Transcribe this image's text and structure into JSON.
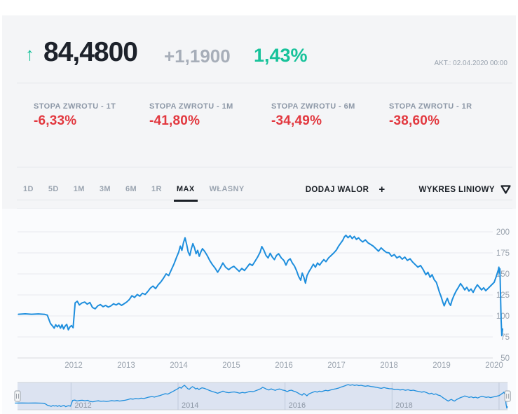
{
  "header": {
    "direction_arrow": "↑",
    "price": "84,4800",
    "change": "+1,1900",
    "change_pct": "1,43%",
    "updated": "AKT.: 02.04.2020 00:00"
  },
  "returns": [
    {
      "label": "STOPA ZWROTU - 1T",
      "value": "-6,33%"
    },
    {
      "label": "STOPA ZWROTU - 1M",
      "value": "-41,80%"
    },
    {
      "label": "STOPA ZWROTU - 6M",
      "value": "-34,49%"
    },
    {
      "label": "STOPA ZWROTU - 1R",
      "value": "-38,60%"
    }
  ],
  "toolbar": {
    "ranges": [
      "1D",
      "5D",
      "1M",
      "3M",
      "6M",
      "1R",
      "MAX",
      "WŁASNY"
    ],
    "active_range": "MAX",
    "add_button": "DODAJ WALOR",
    "add_plus": "+",
    "chart_type": "WYKRES LINIOWY"
  },
  "colors": {
    "up_green": "#17c29a",
    "down_red": "#e2383f",
    "line_blue": "#1e8edd",
    "muted_text": "#98a2ae",
    "dark_text": "#1d222b",
    "gridline": "#e8eaee",
    "navigator_mask": "rgba(102,133,194,0.2)"
  },
  "chart_data": {
    "type": "line",
    "title": "",
    "xlabel": "",
    "ylabel": "",
    "legend": false,
    "grid": true,
    "y_ticks": [
      200,
      175,
      150,
      125,
      100,
      75,
      50
    ],
    "ylim": [
      50,
      200
    ],
    "x_ticks_main": [
      2012,
      2013,
      2014,
      2015,
      2016,
      2017,
      2018,
      2019,
      2020
    ],
    "x_ticks_navigator": [
      2012,
      2014,
      2016,
      2018,
      2020
    ],
    "x_tick_labels_navigator": [
      "2012",
      "2014",
      "2016",
      "2018"
    ],
    "xlim": [
      2010.95,
      2020.2
    ],
    "series": [
      {
        "name": "price",
        "color": "#1e8edd",
        "points": [
          [
            2010.95,
            102
          ],
          [
            2011.08,
            102.5
          ],
          [
            2011.2,
            102
          ],
          [
            2011.33,
            102.4
          ],
          [
            2011.45,
            101.8
          ],
          [
            2011.5,
            101
          ],
          [
            2011.53,
            96
          ],
          [
            2011.56,
            91
          ],
          [
            2011.6,
            88
          ],
          [
            2011.63,
            85.5
          ],
          [
            2011.66,
            89.5
          ],
          [
            2011.69,
            87
          ],
          [
            2011.72,
            89
          ],
          [
            2011.75,
            85.5
          ],
          [
            2011.78,
            89.5
          ],
          [
            2011.81,
            84.5
          ],
          [
            2011.84,
            88
          ],
          [
            2011.87,
            90
          ],
          [
            2011.9,
            83.5
          ],
          [
            2011.93,
            87
          ],
          [
            2011.96,
            88.5
          ],
          [
            2011.99,
            86
          ],
          [
            2012.03,
            115.5
          ],
          [
            2012.07,
            117.5
          ],
          [
            2012.11,
            113
          ],
          [
            2012.16,
            115.5
          ],
          [
            2012.21,
            116.5
          ],
          [
            2012.26,
            114
          ],
          [
            2012.31,
            116
          ],
          [
            2012.36,
            110
          ],
          [
            2012.41,
            108.5
          ],
          [
            2012.46,
            112
          ],
          [
            2012.51,
            113.5
          ],
          [
            2012.56,
            111
          ],
          [
            2012.61,
            112.5
          ],
          [
            2012.66,
            110.5
          ],
          [
            2012.71,
            112
          ],
          [
            2012.76,
            114.5
          ],
          [
            2012.81,
            113
          ],
          [
            2012.86,
            115
          ],
          [
            2012.91,
            112.5
          ],
          [
            2012.96,
            114.5
          ],
          [
            2013.01,
            116.5
          ],
          [
            2013.06,
            119.5
          ],
          [
            2013.11,
            124
          ],
          [
            2013.16,
            122
          ],
          [
            2013.21,
            125.5
          ],
          [
            2013.26,
            123.5
          ],
          [
            2013.31,
            127
          ],
          [
            2013.36,
            125.5
          ],
          [
            2013.41,
            129
          ],
          [
            2013.46,
            133
          ],
          [
            2013.51,
            135.5
          ],
          [
            2013.56,
            132.5
          ],
          [
            2013.61,
            137
          ],
          [
            2013.66,
            140.5
          ],
          [
            2013.71,
            145
          ],
          [
            2013.76,
            150
          ],
          [
            2013.81,
            148
          ],
          [
            2013.86,
            155
          ],
          [
            2013.91,
            162
          ],
          [
            2013.96,
            170
          ],
          [
            2014.0,
            176
          ],
          [
            2014.03,
            183
          ],
          [
            2014.06,
            178
          ],
          [
            2014.09,
            187
          ],
          [
            2014.12,
            193
          ],
          [
            2014.15,
            185
          ],
          [
            2014.18,
            176
          ],
          [
            2014.21,
            172
          ],
          [
            2014.24,
            180
          ],
          [
            2014.27,
            186
          ],
          [
            2014.3,
            181
          ],
          [
            2014.33,
            174
          ],
          [
            2014.36,
            178
          ],
          [
            2014.39,
            171
          ],
          [
            2014.42,
            176
          ],
          [
            2014.45,
            180
          ],
          [
            2014.49,
            177
          ],
          [
            2014.54,
            172
          ],
          [
            2014.59,
            166
          ],
          [
            2014.64,
            161
          ],
          [
            2014.69,
            157
          ],
          [
            2014.74,
            152
          ],
          [
            2014.79,
            157
          ],
          [
            2014.84,
            163
          ],
          [
            2014.89,
            158
          ],
          [
            2014.95,
            155
          ],
          [
            2015.0,
            157.5
          ],
          [
            2015.05,
            159
          ],
          [
            2015.1,
            156
          ],
          [
            2015.15,
            153
          ],
          [
            2015.2,
            156.5
          ],
          [
            2015.25,
            154
          ],
          [
            2015.3,
            158
          ],
          [
            2015.35,
            162
          ],
          [
            2015.4,
            160
          ],
          [
            2015.45,
            165
          ],
          [
            2015.5,
            170
          ],
          [
            2015.55,
            176
          ],
          [
            2015.58,
            182.5
          ],
          [
            2015.62,
            178
          ],
          [
            2015.66,
            172
          ],
          [
            2015.7,
            169
          ],
          [
            2015.74,
            174.5
          ],
          [
            2015.78,
            170
          ],
          [
            2015.82,
            167
          ],
          [
            2015.86,
            172
          ],
          [
            2015.9,
            174
          ],
          [
            2015.95,
            169
          ],
          [
            2016.0,
            166
          ],
          [
            2016.04,
            160.5
          ],
          [
            2016.08,
            166
          ],
          [
            2016.12,
            168
          ],
          [
            2016.16,
            163
          ],
          [
            2016.2,
            159.5
          ],
          [
            2016.24,
            154
          ],
          [
            2016.28,
            147
          ],
          [
            2016.32,
            142.5
          ],
          [
            2016.35,
            151
          ],
          [
            2016.38,
            146
          ],
          [
            2016.41,
            139
          ],
          [
            2016.44,
            148
          ],
          [
            2016.48,
            153
          ],
          [
            2016.52,
            157
          ],
          [
            2016.56,
            161.5
          ],
          [
            2016.6,
            158
          ],
          [
            2016.64,
            163
          ],
          [
            2016.68,
            160.5
          ],
          [
            2016.72,
            164
          ],
          [
            2016.76,
            167
          ],
          [
            2016.8,
            164.5
          ],
          [
            2016.85,
            169
          ],
          [
            2016.9,
            172
          ],
          [
            2016.95,
            175
          ],
          [
            2017.0,
            178.5
          ],
          [
            2017.04,
            183
          ],
          [
            2017.08,
            186.5
          ],
          [
            2017.12,
            190
          ],
          [
            2017.15,
            194
          ],
          [
            2017.18,
            196
          ],
          [
            2017.22,
            193
          ],
          [
            2017.26,
            195.5
          ],
          [
            2017.3,
            192
          ],
          [
            2017.34,
            194.5
          ],
          [
            2017.38,
            191
          ],
          [
            2017.42,
            193
          ],
          [
            2017.46,
            190
          ],
          [
            2017.5,
            188
          ],
          [
            2017.55,
            190.5
          ],
          [
            2017.6,
            187
          ],
          [
            2017.65,
            185
          ],
          [
            2017.7,
            183
          ],
          [
            2017.75,
            180
          ],
          [
            2017.8,
            177
          ],
          [
            2017.85,
            181
          ],
          [
            2017.9,
            178
          ],
          [
            2017.95,
            175.5
          ],
          [
            2018.0,
            175
          ],
          [
            2018.05,
            171
          ],
          [
            2018.1,
            173
          ],
          [
            2018.15,
            169
          ],
          [
            2018.2,
            171
          ],
          [
            2018.25,
            167.5
          ],
          [
            2018.3,
            170
          ],
          [
            2018.35,
            166
          ],
          [
            2018.4,
            168
          ],
          [
            2018.45,
            164
          ],
          [
            2018.5,
            161
          ],
          [
            2018.55,
            158
          ],
          [
            2018.6,
            160
          ],
          [
            2018.65,
            155
          ],
          [
            2018.7,
            149
          ],
          [
            2018.74,
            152
          ],
          [
            2018.78,
            146
          ],
          [
            2018.82,
            149
          ],
          [
            2018.86,
            143
          ],
          [
            2018.9,
            140
          ],
          [
            2018.93,
            134
          ],
          [
            2018.96,
            128
          ],
          [
            2018.99,
            123
          ],
          [
            2019.02,
            117
          ],
          [
            2019.05,
            112
          ],
          [
            2019.08,
            117
          ],
          [
            2019.11,
            121
          ],
          [
            2019.14,
            115.5
          ],
          [
            2019.17,
            112.5
          ],
          [
            2019.2,
            119
          ],
          [
            2019.24,
            125
          ],
          [
            2019.28,
            130
          ],
          [
            2019.32,
            134
          ],
          [
            2019.36,
            138.5
          ],
          [
            2019.4,
            135
          ],
          [
            2019.44,
            131
          ],
          [
            2019.48,
            134
          ],
          [
            2019.52,
            129.5
          ],
          [
            2019.56,
            132
          ],
          [
            2019.6,
            128
          ],
          [
            2019.64,
            133
          ],
          [
            2019.68,
            137
          ],
          [
            2019.72,
            134
          ],
          [
            2019.76,
            131
          ],
          [
            2019.8,
            133.5
          ],
          [
            2019.84,
            130
          ],
          [
            2019.88,
            132.5
          ],
          [
            2019.92,
            135
          ],
          [
            2019.96,
            137.5
          ],
          [
            2020.0,
            140
          ],
          [
            2020.02,
            143.5
          ],
          [
            2020.04,
            147
          ],
          [
            2020.06,
            151
          ],
          [
            2020.08,
            155
          ],
          [
            2020.09,
            158
          ],
          [
            2020.1,
            151
          ],
          [
            2020.11,
            156
          ],
          [
            2020.12,
            128
          ],
          [
            2020.13,
            98
          ],
          [
            2020.145,
            76.5
          ],
          [
            2020.16,
            84.48
          ]
        ]
      }
    ]
  }
}
